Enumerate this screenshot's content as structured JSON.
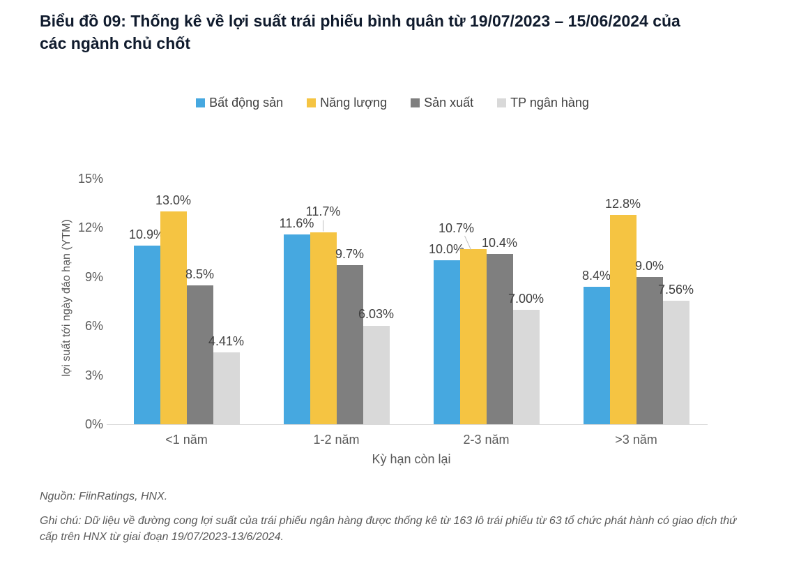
{
  "title": "Biểu đồ 09: Thống kê về lợi suất trái phiếu bình quân từ 19/07/2023 – 15/06/2024 của các ngành chủ chốt",
  "chart_data": {
    "type": "bar",
    "categories": [
      "<1 năm",
      "1-2 năm",
      "2-3 năm",
      ">3 năm"
    ],
    "series": [
      {
        "name": "Bất động sản",
        "color": "#46a8e0",
        "values": [
          10.9,
          11.6,
          10.0,
          8.4
        ],
        "labels": [
          "10.9%",
          "11.6%",
          "10.0%",
          "8.4%"
        ]
      },
      {
        "name": "Năng lượng",
        "color": "#f5c442",
        "values": [
          13.0,
          11.7,
          10.7,
          12.8
        ],
        "labels": [
          "13.0%",
          "11.7%",
          "10.7%",
          "12.8%"
        ]
      },
      {
        "name": "Sản xuất",
        "color": "#7f7f7f",
        "values": [
          8.5,
          9.7,
          10.4,
          9.0
        ],
        "labels": [
          "8.5%",
          "9.7%",
          "10.4%",
          "9.0%"
        ]
      },
      {
        "name": "TP ngân hàng",
        "color": "#d9d9d9",
        "values": [
          4.41,
          6.03,
          7.0,
          7.56
        ],
        "labels": [
          "4.41%",
          "6.03%",
          "7.00%",
          "7.56%"
        ]
      }
    ],
    "xlabel": "Kỳ hạn còn lại",
    "ylabel": "lợi suất tới ngày đáo hạn (YTM)",
    "ylim": [
      0,
      15
    ],
    "yticks": [
      "0%",
      "3%",
      "6%",
      "9%",
      "12%",
      "15%"
    ],
    "grid": false,
    "legend_position": "top"
  },
  "source": "Nguồn: FiinRatings, HNX.",
  "note": "Ghi chú: Dữ liệu về đường cong lợi suất của trái phiếu ngân hàng được thống kê từ 163 lô trái phiếu từ 63 tổ chức phát hành có giao dịch thứ cấp trên HNX từ giai đoạn 19/07/2023-13/6/2024."
}
